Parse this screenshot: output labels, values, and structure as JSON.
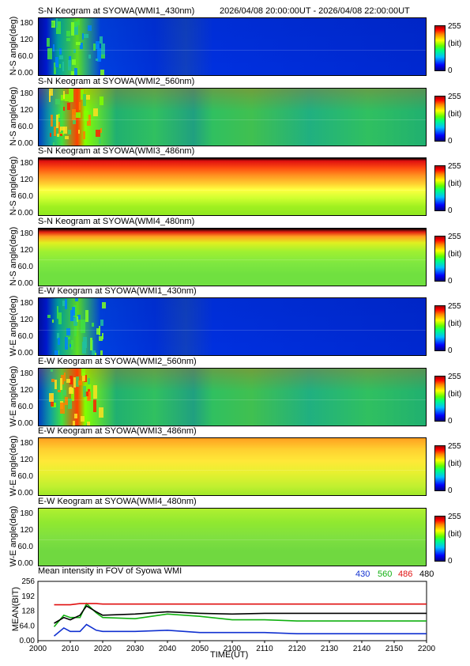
{
  "header": {
    "time_range": "2026/04/08 20:00:00UT - 2026/04/08 22:00:00UT"
  },
  "panels": [
    {
      "title": "S-N Keogram at SYOWA(WMI1_430nm)",
      "ylabel": "N-S angle(deg)",
      "ticks": [
        "180",
        "120",
        "60.0",
        "0.00"
      ],
      "colormode": "blue"
    },
    {
      "title": "S-N Keogram at SYOWA(WMI2_560nm)",
      "ylabel": "N-S angle(deg)",
      "ticks": [
        "180",
        "120",
        "60.0",
        "0.00"
      ],
      "colormode": "green_aurora"
    },
    {
      "title": "S-N Keogram at SYOWA(WMI3_486nm)",
      "ylabel": "N-S angle(deg)",
      "ticks": [
        "180",
        "120",
        "60.0",
        "0.00"
      ],
      "colormode": "orange_top"
    },
    {
      "title": "S-N Keogram at SYOWA(WMI4_480nm)",
      "ylabel": "N-S angle(deg)",
      "ticks": [
        "180",
        "120",
        "60.0",
        "0.00"
      ],
      "colormode": "green_top"
    },
    {
      "title": "E-W Keogram at SYOWA(WMI1_430nm)",
      "ylabel": "W-E angle(deg)",
      "ticks": [
        "180",
        "120",
        "60.0",
        "0.00"
      ],
      "colormode": "blue"
    },
    {
      "title": "E-W Keogram at SYOWA(WMI2_560nm)",
      "ylabel": "W-E angle(deg)",
      "ticks": [
        "180",
        "120",
        "60.0",
        "0.00"
      ],
      "colormode": "green_aurora"
    },
    {
      "title": "E-W Keogram at SYOWA(WMI3_486nm)",
      "ylabel": "W-E angle(deg)",
      "ticks": [
        "180",
        "120",
        "60.0",
        "0.00"
      ],
      "colormode": "yellow"
    },
    {
      "title": "E-W Keogram at SYOWA(WMI4_480nm)",
      "ylabel": "W-E angle(deg)",
      "ticks": [
        "180",
        "120",
        "60.0",
        "0.00"
      ],
      "colormode": "green"
    }
  ],
  "colorbar": {
    "max": "255",
    "unit": "(bit)",
    "min": "0"
  },
  "mean_panel": {
    "title": "Mean intensity in FOV of Syowa WMI",
    "ylabel": "MEAN(BIT)",
    "ticks": [
      "256",
      "192",
      "128",
      "64.0",
      "0.00"
    ],
    "legend": [
      {
        "label": "430",
        "color": "#1030d0"
      },
      {
        "label": "560",
        "color": "#10b010"
      },
      {
        "label": "486",
        "color": "#e01010"
      },
      {
        "label": "480",
        "color": "#000000"
      }
    ]
  },
  "xaxis": {
    "label": "TIME(UT)",
    "ticks": [
      "2000",
      "2010",
      "2020",
      "2030",
      "2040",
      "2050",
      "2100",
      "2110",
      "2120",
      "2130",
      "2140",
      "2150",
      "2200"
    ]
  },
  "chart_data": {
    "type": "line",
    "title": "Mean intensity in FOV of Syowa WMI",
    "xlabel": "TIME(UT)",
    "ylabel": "MEAN(BIT)",
    "x": [
      "2000",
      "2005",
      "2008",
      "2010",
      "2013",
      "2015",
      "2018",
      "2020",
      "2030",
      "2040",
      "2050",
      "2100",
      "2110",
      "2120",
      "2130",
      "2140",
      "2150",
      "2200"
    ],
    "ylim": [
      0,
      256
    ],
    "series": [
      {
        "name": "430",
        "values": [
          null,
          20,
          55,
          40,
          40,
          70,
          45,
          40,
          40,
          45,
          35,
          35,
          35,
          30,
          30,
          30,
          30,
          30
        ]
      },
      {
        "name": "560",
        "values": [
          null,
          60,
          110,
          100,
          100,
          160,
          120,
          100,
          95,
          115,
          105,
          90,
          90,
          85,
          85,
          85,
          85,
          85
        ]
      },
      {
        "name": "486",
        "values": [
          null,
          155,
          155,
          155,
          160,
          160,
          160,
          158,
          158,
          158,
          158,
          158,
          158,
          158,
          158,
          158,
          158,
          158
        ]
      },
      {
        "name": "480",
        "values": [
          null,
          75,
          100,
          90,
          110,
          150,
          125,
          110,
          115,
          125,
          118,
          115,
          118,
          118,
          118,
          118,
          118,
          118
        ]
      }
    ]
  }
}
